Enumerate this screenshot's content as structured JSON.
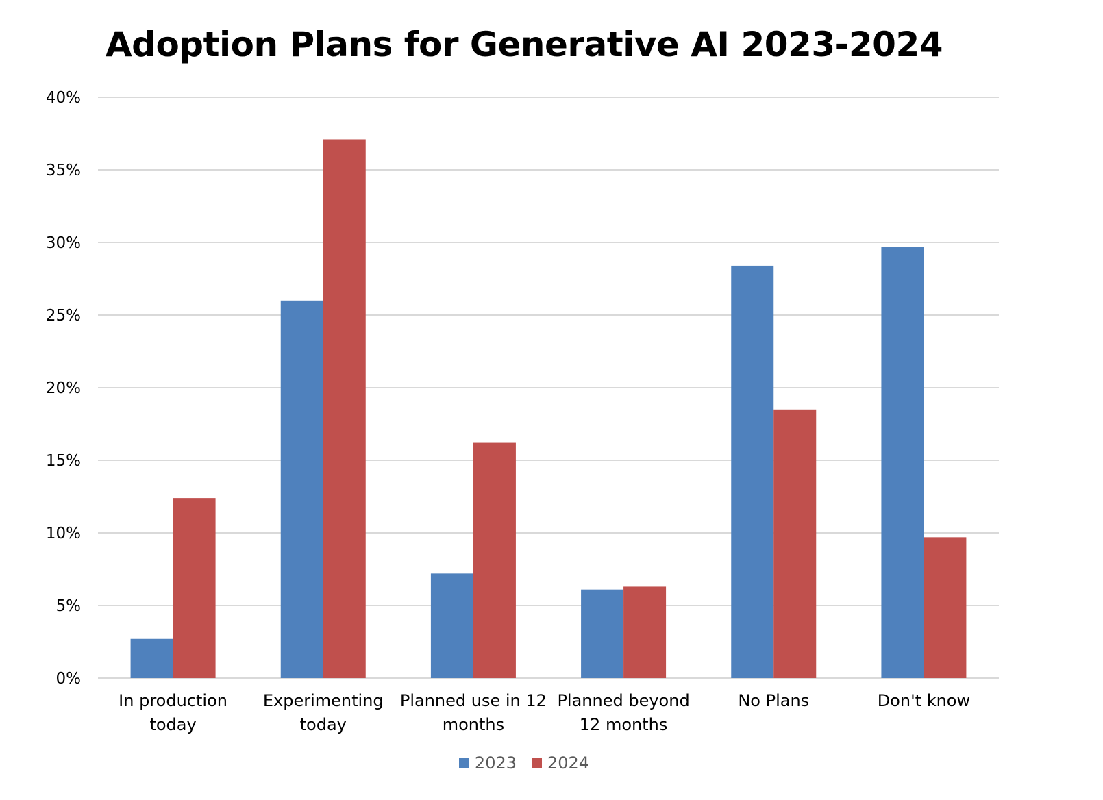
{
  "chart_data": {
    "type": "bar",
    "title": "Adoption Plans for Generative AI 2023-2024",
    "xlabel": "",
    "ylabel": "",
    "categories": [
      [
        "In production",
        "today"
      ],
      [
        "Experimenting",
        "today"
      ],
      [
        "Planned use in 12",
        "months"
      ],
      [
        "Planned beyond",
        "12 months"
      ],
      [
        "No Plans"
      ],
      [
        "Don't know"
      ]
    ],
    "series": [
      {
        "name": "2023",
        "color": "#4F81BD",
        "values": [
          2.7,
          26.0,
          7.2,
          6.1,
          28.4,
          29.7
        ]
      },
      {
        "name": "2024",
        "color": "#C0504D",
        "values": [
          12.4,
          37.1,
          16.2,
          6.3,
          18.5,
          9.7
        ]
      }
    ],
    "ylim": [
      0,
      40
    ],
    "yticks": [
      0,
      5,
      10,
      15,
      20,
      25,
      30,
      35,
      40
    ],
    "ytick_labels": [
      "0%",
      "5%",
      "10%",
      "15%",
      "20%",
      "25%",
      "30%",
      "35%",
      "40%"
    ],
    "grid": true,
    "gridline_color": "#D9D9D9",
    "legend_position": "bottom"
  }
}
